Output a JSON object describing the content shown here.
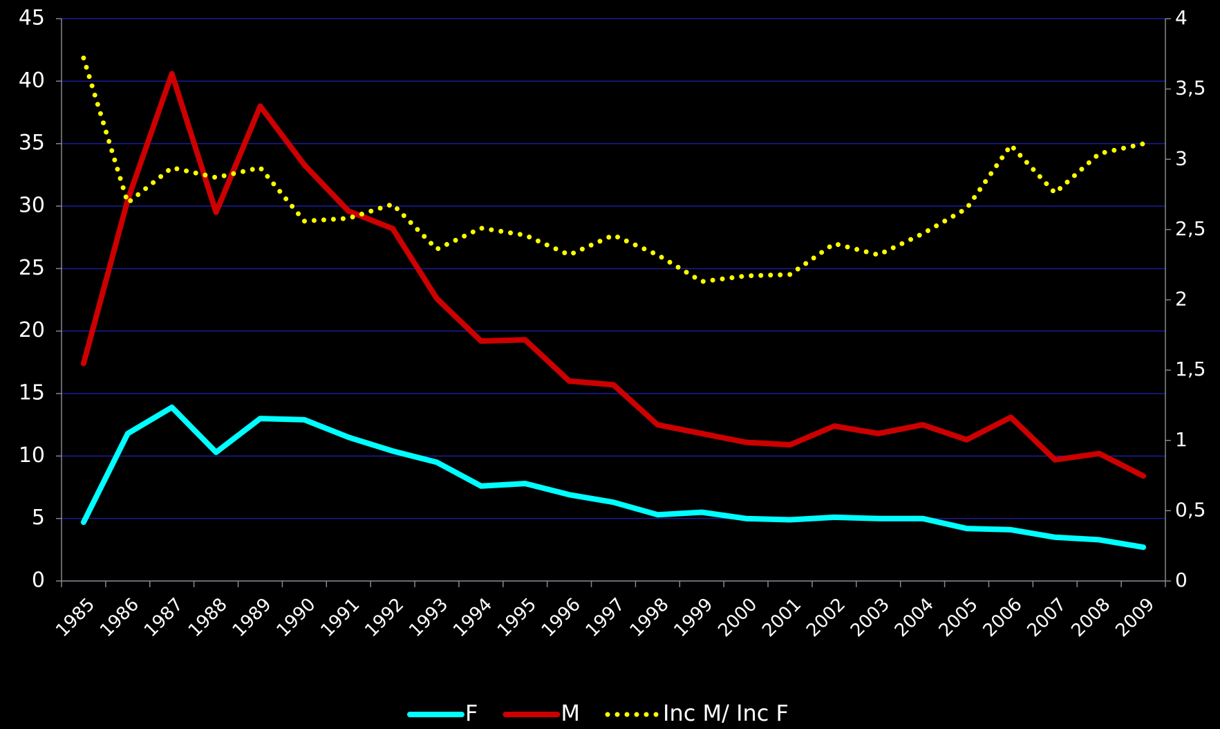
{
  "chart_data": {
    "type": "line",
    "categories": [
      "1985",
      "1986",
      "1987",
      "1988",
      "1989",
      "1990",
      "1991",
      "1992",
      "1993",
      "1994",
      "1995",
      "1996",
      "1997",
      "1998",
      "1999",
      "2000",
      "2001",
      "2002",
      "2003",
      "2004",
      "2005",
      "2006",
      "2007",
      "2008",
      "2009"
    ],
    "series": [
      {
        "name": "F",
        "color": "#00ffff",
        "values": [
          4.7,
          11.8,
          13.9,
          10.3,
          13.0,
          12.9,
          11.5,
          10.4,
          9.5,
          7.6,
          7.8,
          6.9,
          6.3,
          5.3,
          5.5,
          5.0,
          4.9,
          5.1,
          5.0,
          5.0,
          4.2,
          4.1,
          3.5,
          3.3,
          2.7
        ]
      },
      {
        "name": "M",
        "color": "#cc0000",
        "values": [
          17.4,
          30.5,
          40.6,
          29.5,
          38.0,
          33.3,
          29.6,
          28.2,
          22.6,
          19.2,
          19.3,
          16.0,
          15.7,
          12.5,
          11.8,
          11.1,
          10.9,
          12.4,
          11.8,
          12.5,
          11.3,
          13.1,
          9.7,
          10.2,
          8.4
        ]
      },
      {
        "name": "Inc M/ Inc F",
        "color": "#ffff00",
        "dotted": true,
        "axis": "y2",
        "values": [
          3.72,
          2.69,
          2.94,
          2.87,
          2.94,
          2.56,
          2.58,
          2.68,
          2.36,
          2.51,
          2.46,
          2.32,
          2.46,
          2.32,
          2.13,
          2.17,
          2.18,
          2.4,
          2.32,
          2.47,
          2.65,
          3.1,
          2.76,
          3.04,
          3.11
        ]
      }
    ],
    "ylim": [
      0,
      45
    ],
    "yticks": [
      0,
      5,
      10,
      15,
      20,
      25,
      30,
      35,
      40,
      45
    ],
    "y2lim": [
      0,
      4
    ],
    "y2ticks": [
      0,
      {
        "value": 0.5,
        "label": "0,5"
      },
      1,
      {
        "value": 1.5,
        "label": "1,5"
      },
      2,
      {
        "value": 2.5,
        "label": "2,5"
      },
      3,
      {
        "value": 3.5,
        "label": "3,5"
      },
      4
    ],
    "grid": true,
    "legend": "bottom"
  }
}
